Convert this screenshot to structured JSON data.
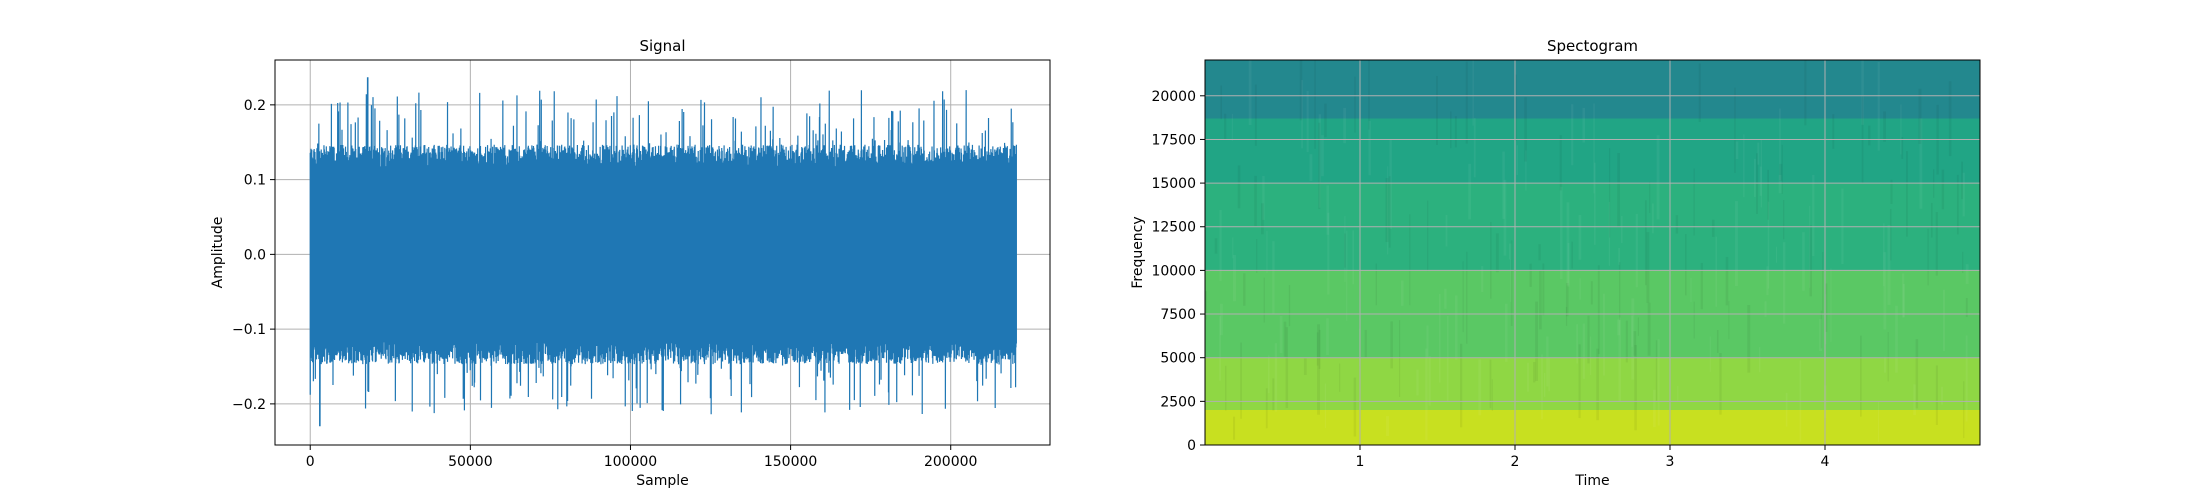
{
  "chart_data": [
    {
      "type": "line",
      "title": "Signal",
      "xlabel": "Sample",
      "ylabel": "Amplitude",
      "xlim": [
        -11000,
        231000
      ],
      "ylim": [
        -0.255,
        0.26
      ],
      "x_ticks": [
        0,
        50000,
        100000,
        150000,
        200000
      ],
      "x_tick_labels": [
        "0",
        "50000",
        "100000",
        "150000",
        "200000"
      ],
      "y_ticks": [
        -0.2,
        -0.1,
        0.0,
        0.1,
        0.2
      ],
      "y_tick_labels": [
        "−0.2",
        "−0.1",
        "0.0",
        "0.1",
        "0.2"
      ],
      "grid": true,
      "line_color": "#1f77b4",
      "series": [
        {
          "sample_count": 220500,
          "x_start": 0,
          "x_end": 220500,
          "typical_max": 0.13,
          "typical_min": -0.13,
          "peak_max": 0.237,
          "peak_max_at": 18000,
          "peak_min": -0.23,
          "peak_min_at": 3000
        }
      ]
    },
    {
      "type": "heatmap",
      "title": "Spectogram",
      "xlabel": "Time",
      "ylabel": "Frequency",
      "xlim": [
        0,
        5.0
      ],
      "ylim": [
        0,
        22050
      ],
      "x_ticks": [
        1,
        2,
        3,
        4
      ],
      "x_tick_labels": [
        "1",
        "2",
        "3",
        "4"
      ],
      "y_ticks": [
        0,
        2500,
        5000,
        7500,
        10000,
        12500,
        15000,
        17500,
        20000
      ],
      "y_tick_labels": [
        "0",
        "2500",
        "5000",
        "7500",
        "10000",
        "12500",
        "15000",
        "17500",
        "20000"
      ],
      "grid": true,
      "colormap": "viridis",
      "frequency_bands": [
        {
          "freq_from": 0,
          "freq_to": 2000,
          "color": "#c8e020"
        },
        {
          "freq_from": 2000,
          "freq_to": 5000,
          "color": "#8fd744"
        },
        {
          "freq_from": 5000,
          "freq_to": 10000,
          "color": "#5ac864"
        },
        {
          "freq_from": 10000,
          "freq_to": 15000,
          "color": "#2cb17e"
        },
        {
          "freq_from": 15000,
          "freq_to": 18700,
          "color": "#21a585"
        },
        {
          "freq_from": 18700,
          "freq_to": 22050,
          "color": "#23888e"
        }
      ]
    }
  ]
}
